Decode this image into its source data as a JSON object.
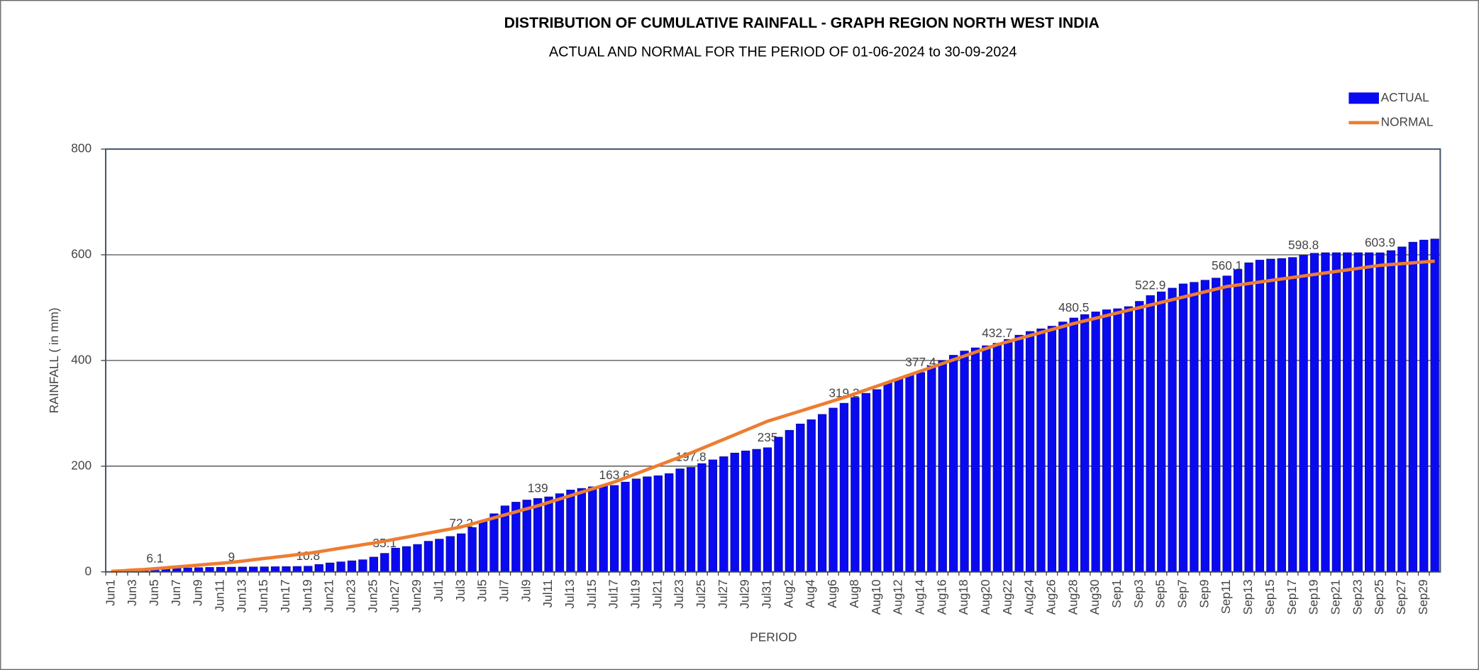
{
  "chart_data": {
    "type": "bar",
    "title": "DISTRIBUTION OF CUMULATIVE RAINFALL - GRAPH REGION NORTH WEST INDIA",
    "subtitle": "ACTUAL AND NORMAL FOR THE PERIOD OF 01-06-2024 to  30-09-2024",
    "x_label": "PERIOD",
    "y_label": "RAINFALL ( in mm)",
    "ylim": [
      0,
      800
    ],
    "yticks": [
      0,
      200,
      400,
      600,
      800
    ],
    "grid": true,
    "legend": "top-right",
    "categories": [
      "Jun1",
      null,
      "Jun3",
      null,
      "Jun5",
      null,
      "Jun7",
      null,
      "Jun9",
      null,
      "Jun11",
      null,
      "Jun13",
      null,
      "Jun15",
      null,
      "Jun17",
      null,
      "Jun19",
      null,
      "Jun21",
      null,
      "Jun23",
      null,
      "Jun25",
      null,
      "Jun27",
      null,
      "Jun29",
      null,
      "Jul1",
      null,
      "Jul3",
      null,
      "Jul5",
      null,
      "Jul7",
      null,
      "Jul9",
      null,
      "Jul11",
      null,
      "Jul13",
      null,
      "Jul15",
      null,
      "Jul17",
      null,
      "Jul19",
      null,
      "Jul21",
      null,
      "Jul23",
      null,
      "Jul25",
      null,
      "Jul27",
      null,
      "Jul29",
      null,
      "Jul31",
      null,
      "Aug2",
      null,
      "Aug4",
      null,
      "Aug6",
      null,
      "Aug8",
      null,
      "Aug10",
      null,
      "Aug12",
      null,
      "Aug14",
      null,
      "Aug16",
      null,
      "Aug18",
      null,
      "Aug20",
      null,
      "Aug22",
      null,
      "Aug24",
      null,
      "Aug26",
      null,
      "Aug28",
      null,
      "Aug30",
      null,
      "Sep1",
      null,
      "Sep3",
      null,
      "Sep5",
      null,
      "Sep7",
      null,
      "Sep9",
      null,
      "Sep11",
      null,
      "Sep13",
      null,
      "Sep15",
      null,
      "Sep17",
      null,
      "Sep19",
      null,
      "Sep21",
      null,
      "Sep23",
      null,
      "Sep25",
      null,
      "Sep27",
      null,
      "Sep29",
      null
    ],
    "series": [
      {
        "name": "ACTUAL",
        "type": "bar",
        "color": "#0a0af0",
        "values": [
          0.5,
          1,
          2,
          4,
          6.1,
          6.5,
          7,
          7.5,
          8,
          8.5,
          8.8,
          9,
          9.2,
          9.4,
          9.6,
          9.8,
          10,
          10.3,
          10.8,
          14,
          17,
          19,
          21,
          23,
          28,
          35.1,
          45,
          48,
          52,
          58,
          62,
          67,
          72.2,
          84,
          95,
          110,
          125,
          132,
          136,
          139,
          142,
          148,
          155,
          158,
          161,
          163,
          163.6,
          170,
          176,
          180,
          182,
          186,
          195,
          197.8,
          205,
          212,
          218,
          225,
          229,
          232,
          235,
          255,
          268,
          280,
          288,
          298,
          310,
          319.2,
          330,
          338,
          345,
          358,
          366,
          372,
          377.4,
          390,
          400,
          410,
          418,
          424,
          428,
          432.7,
          440,
          448,
          455,
          460,
          465,
          473,
          480.5,
          487,
          492,
          496,
          498,
          502,
          512,
          522.9,
          530,
          537,
          545,
          548,
          552,
          556,
          560.1,
          572,
          585,
          590,
          592,
          593,
          595,
          598.8,
          603,
          604,
          604,
          604,
          604,
          604,
          603.9,
          608,
          615,
          624,
          628,
          630
        ],
        "value_labels": [
          null,
          null,
          null,
          null,
          "6.1",
          null,
          null,
          null,
          null,
          null,
          null,
          "9",
          null,
          null,
          null,
          null,
          null,
          null,
          "10.8",
          null,
          null,
          null,
          null,
          null,
          null,
          "35.1",
          null,
          null,
          null,
          null,
          null,
          null,
          "72.2",
          null,
          null,
          null,
          null,
          null,
          null,
          "139",
          null,
          null,
          null,
          null,
          null,
          null,
          "163.6",
          null,
          null,
          null,
          null,
          null,
          null,
          "197.8",
          null,
          null,
          null,
          null,
          null,
          null,
          "235",
          null,
          null,
          null,
          null,
          null,
          null,
          "319.2",
          null,
          null,
          null,
          null,
          null,
          null,
          "377.4",
          null,
          null,
          null,
          null,
          null,
          null,
          "432.7",
          null,
          null,
          null,
          null,
          null,
          null,
          "480.5",
          null,
          null,
          null,
          null,
          null,
          null,
          "522.9",
          null,
          null,
          null,
          null,
          null,
          null,
          "560.1",
          null,
          null,
          null,
          null,
          null,
          null,
          "598.8",
          null,
          null,
          null,
          null,
          null,
          null,
          "603.9",
          null,
          null,
          null,
          null,
          null
        ]
      },
      {
        "name": "NORMAL",
        "type": "line",
        "color": "#ed7d31",
        "values": [
          1,
          2,
          3.5,
          4.5,
          6,
          7.7,
          9.4,
          11.1,
          12.9,
          14.6,
          16.3,
          18,
          20.4,
          22.9,
          25.3,
          27.7,
          30.1,
          32.6,
          35,
          38.3,
          41.6,
          44.9,
          48.1,
          51.4,
          54.7,
          58,
          61.9,
          65.7,
          69.6,
          73.4,
          77.3,
          81.1,
          85,
          90.7,
          96.4,
          102.1,
          107.9,
          113.6,
          119.3,
          125,
          131.4,
          137.9,
          144.3,
          150.7,
          157.1,
          163.6,
          170,
          177.9,
          185.7,
          193.6,
          201.4,
          209.3,
          217.1,
          225,
          233.6,
          242.1,
          250.7,
          259.3,
          267.9,
          276.4,
          285,
          291.4,
          297.9,
          304.3,
          310.7,
          317.1,
          323.6,
          330,
          337.1,
          344.3,
          351.4,
          358.6,
          365.7,
          372.9,
          380,
          387.1,
          394.3,
          401.4,
          408.6,
          415.7,
          422.9,
          430,
          435.7,
          441.4,
          447.1,
          452.9,
          458.6,
          464.3,
          470,
          475,
          480,
          485,
          490,
          495,
          500,
          505,
          510,
          515,
          520,
          525,
          530,
          535,
          540,
          542.9,
          545.7,
          548.6,
          551.4,
          554.3,
          557.1,
          560,
          562.9,
          565.7,
          568.6,
          571.4,
          574.3,
          577.1,
          580,
          581.6,
          583.2,
          584.8,
          586.4,
          588
        ]
      }
    ]
  }
}
